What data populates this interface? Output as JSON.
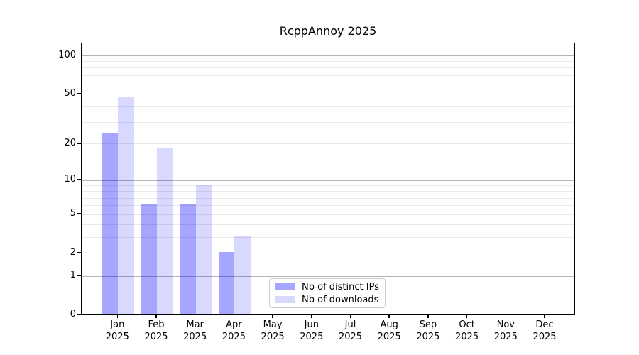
{
  "figure": {
    "background": "#ffffff"
  },
  "chart_data": {
    "type": "bar",
    "title": "RcppAnnoy 2025",
    "categories": [
      "Jan",
      "Feb",
      "Mar",
      "Apr",
      "May",
      "Jun",
      "Jul",
      "Aug",
      "Sep",
      "Oct",
      "Nov",
      "Dec"
    ],
    "category_year": "2025",
    "series": [
      {
        "name": "Nb of distinct IPs",
        "color": "#0000FF59",
        "values": [
          24,
          6,
          6,
          2,
          0,
          0,
          0,
          0,
          0,
          0,
          0,
          0
        ]
      },
      {
        "name": "Nb of downloads",
        "color": "#0000FF26",
        "values": [
          46,
          18,
          9,
          3,
          0,
          0,
          0,
          0,
          0,
          0,
          0,
          0
        ]
      }
    ],
    "yscale": "log1p",
    "yticks": [
      0,
      1,
      2,
      5,
      10,
      20,
      50,
      100
    ],
    "ylim": [
      0,
      125
    ],
    "grid": {
      "major_values": [
        1,
        10,
        100
      ],
      "minor_values": [
        2,
        3,
        4,
        5,
        6,
        7,
        8,
        9,
        20,
        30,
        40,
        50,
        60,
        70,
        80,
        90
      ],
      "major_color": "#b3b3b3",
      "minor_color": "#e9e9e9"
    },
    "axis_color": "#000000",
    "legend": {
      "border_color": "#cccccc",
      "background": "#ffffff"
    }
  }
}
